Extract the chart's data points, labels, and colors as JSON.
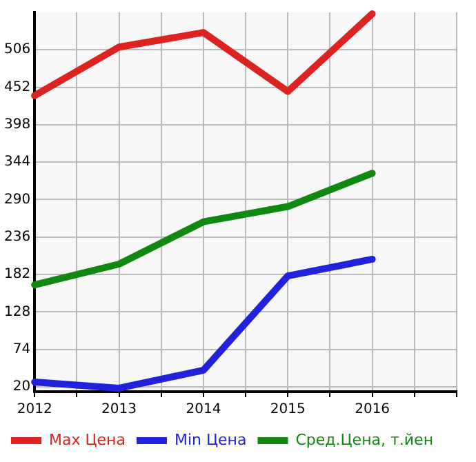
{
  "chart_data": {
    "type": "line",
    "x": [
      2012,
      2013,
      2014,
      2015,
      2016
    ],
    "series": [
      {
        "name": "Max Цена",
        "color": "#dd2222",
        "values": [
          440,
          510,
          531,
          446,
          558
        ]
      },
      {
        "name": "Min Цена",
        "color": "#2222dd",
        "values": [
          27,
          18,
          44,
          180,
          204
        ]
      },
      {
        "name": "Сред.Цена, т.йен",
        "color": "#118811",
        "values": [
          167,
          197,
          258,
          280,
          328
        ]
      }
    ],
    "xlim": [
      2012,
      2017
    ],
    "xticks": [
      2012,
      {
        "value": 2012.5,
        "label": null
      },
      2013,
      {
        "value": 2013.5,
        "label": null
      },
      2014,
      {
        "value": 2014.5,
        "label": null
      },
      2015,
      {
        "value": 2015.5,
        "label": null
      },
      2016,
      {
        "value": 2016.5,
        "label": null
      },
      {
        "value": 2017,
        "label": null
      }
    ],
    "ylim": [
      13,
      560
    ],
    "yticks": [
      20,
      74,
      128,
      182,
      236,
      290,
      344,
      398,
      452,
      506
    ],
    "grid": true,
    "legend": "bottom",
    "marker": "none",
    "line_style": "solid"
  }
}
